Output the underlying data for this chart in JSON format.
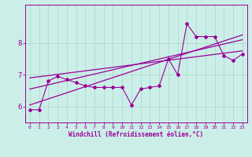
{
  "xlabel": "Windchill (Refroidissement éolien,°C)",
  "bg_color": "#cceee8",
  "grid_color": "#aaddcc",
  "line_color": "#990099",
  "xlim": [
    -0.5,
    23.5
  ],
  "ylim": [
    5.5,
    9.2
  ],
  "yticks": [
    6,
    7,
    8
  ],
  "xticks": [
    0,
    1,
    2,
    3,
    4,
    5,
    6,
    7,
    8,
    9,
    10,
    11,
    12,
    13,
    14,
    15,
    16,
    17,
    18,
    19,
    20,
    21,
    22,
    23
  ],
  "series1_x": [
    0,
    1,
    2,
    3,
    4,
    5,
    6,
    7,
    8,
    9,
    10,
    11,
    12,
    13,
    14,
    15,
    16,
    17,
    18,
    19,
    20,
    21,
    22,
    23
  ],
  "series1_y": [
    5.9,
    5.9,
    6.8,
    6.95,
    6.85,
    6.75,
    6.65,
    6.6,
    6.6,
    6.6,
    6.6,
    6.05,
    6.55,
    6.6,
    6.65,
    7.5,
    7.0,
    8.6,
    8.2,
    8.2,
    8.2,
    7.6,
    7.45,
    7.65
  ],
  "line2_x": [
    0,
    23
  ],
  "line2_y": [
    6.05,
    8.25
  ],
  "line3_x": [
    0,
    23
  ],
  "line3_y": [
    6.55,
    8.1
  ],
  "line4_x": [
    0,
    23
  ],
  "line4_y": [
    6.9,
    7.75
  ]
}
